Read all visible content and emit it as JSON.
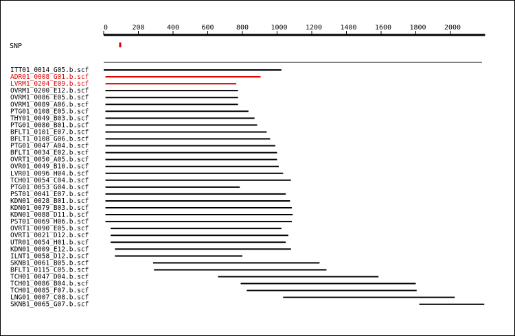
{
  "axis": {
    "min": 0,
    "max": 2200,
    "ticks": [
      0,
      200,
      400,
      600,
      800,
      1000,
      1200,
      1400,
      1600,
      1800,
      2000
    ]
  },
  "snp": {
    "label": "SNP",
    "position": 95,
    "color": "#e00000"
  },
  "colors": {
    "normal": "#000000",
    "highlight": "#e00000"
  },
  "chart_data": {
    "type": "alignment",
    "reads": [
      {
        "name": "ITT01_0014_G05.b.scf",
        "start": 0,
        "end": 1025,
        "highlight": false
      },
      {
        "name": "ADR01_0008_G01.b.scf",
        "start": 10,
        "end": 905,
        "highlight": true
      },
      {
        "name": "LVRM1_0204_E09.b.scf",
        "start": 10,
        "end": 765,
        "highlight": true
      },
      {
        "name": "OVRM1_0200_E12.b.scf",
        "start": 10,
        "end": 775,
        "highlight": false
      },
      {
        "name": "OVRM1_0086_E05.b.scf",
        "start": 10,
        "end": 775,
        "highlight": false
      },
      {
        "name": "OVRM1_0089_A06.b.scf",
        "start": 10,
        "end": 775,
        "highlight": false
      },
      {
        "name": "PTG01_0108_E05.b.scf",
        "start": 10,
        "end": 835,
        "highlight": false
      },
      {
        "name": "THY01_0049_B03.b.scf",
        "start": 10,
        "end": 870,
        "highlight": false
      },
      {
        "name": "PTG01_0080_B01.b.scf",
        "start": 10,
        "end": 885,
        "highlight": false
      },
      {
        "name": "BFLT1_0101_E07.b.scf",
        "start": 10,
        "end": 940,
        "highlight": false
      },
      {
        "name": "BFLT1_0108_G06.b.scf",
        "start": 10,
        "end": 960,
        "highlight": false
      },
      {
        "name": "PTG01_0047_A04.b.scf",
        "start": 10,
        "end": 990,
        "highlight": false
      },
      {
        "name": "BFLT1_0034_E02.b.scf",
        "start": 10,
        "end": 1000,
        "highlight": false
      },
      {
        "name": "OVRT1_0050_A05.b.scf",
        "start": 10,
        "end": 1000,
        "highlight": false
      },
      {
        "name": "OVR01_0049_B10.b.scf",
        "start": 10,
        "end": 1010,
        "highlight": false
      },
      {
        "name": "LVR01_0096_H04.b.scf",
        "start": 10,
        "end": 1035,
        "highlight": false
      },
      {
        "name": "TCH01_0054_C04.b.scf",
        "start": 10,
        "end": 1080,
        "highlight": false
      },
      {
        "name": "PTG01_0053_G04.b.scf",
        "start": 10,
        "end": 785,
        "highlight": false
      },
      {
        "name": "PST01_0041_E07.b.scf",
        "start": 10,
        "end": 1050,
        "highlight": false
      },
      {
        "name": "KDN01_0028_B01.b.scf",
        "start": 10,
        "end": 1075,
        "highlight": false
      },
      {
        "name": "KDN01_0079_B03.b.scf",
        "start": 10,
        "end": 1085,
        "highlight": false
      },
      {
        "name": "KDN01_0088_D11.b.scf",
        "start": 10,
        "end": 1090,
        "highlight": false
      },
      {
        "name": "PST01_0069_H06.b.scf",
        "start": 10,
        "end": 1085,
        "highlight": false
      },
      {
        "name": "OVRT1_0090_E05.b.scf",
        "start": 40,
        "end": 1025,
        "highlight": false
      },
      {
        "name": "OVRT1_0021_D12.b.scf",
        "start": 40,
        "end": 1065,
        "highlight": false
      },
      {
        "name": "UTR01_0054_H01.b.scf",
        "start": 40,
        "end": 1050,
        "highlight": false
      },
      {
        "name": "KDN01_0009_E12.b.scf",
        "start": 65,
        "end": 1080,
        "highlight": false
      },
      {
        "name": "ILNT1_0058_D12.b.scf",
        "start": 65,
        "end": 800,
        "highlight": false
      },
      {
        "name": "SKNB1_0061_B05.b.scf",
        "start": 285,
        "end": 1245,
        "highlight": false
      },
      {
        "name": "BFLT1_0115_C05.b.scf",
        "start": 290,
        "end": 1285,
        "highlight": false
      },
      {
        "name": "TCH01_0047_D04.b.scf",
        "start": 660,
        "end": 1585,
        "highlight": false
      },
      {
        "name": "TCH01_0086_B04.b.scf",
        "start": 790,
        "end": 1800,
        "highlight": false
      },
      {
        "name": "TCH01_0085_F07.b.scf",
        "start": 825,
        "end": 1805,
        "highlight": false
      },
      {
        "name": "LNG01_0007_C08.b.scf",
        "start": 1035,
        "end": 2025,
        "highlight": false
      },
      {
        "name": "SKNB1_0065_G07.b.scf",
        "start": 1820,
        "end": 2195,
        "highlight": false
      }
    ]
  }
}
